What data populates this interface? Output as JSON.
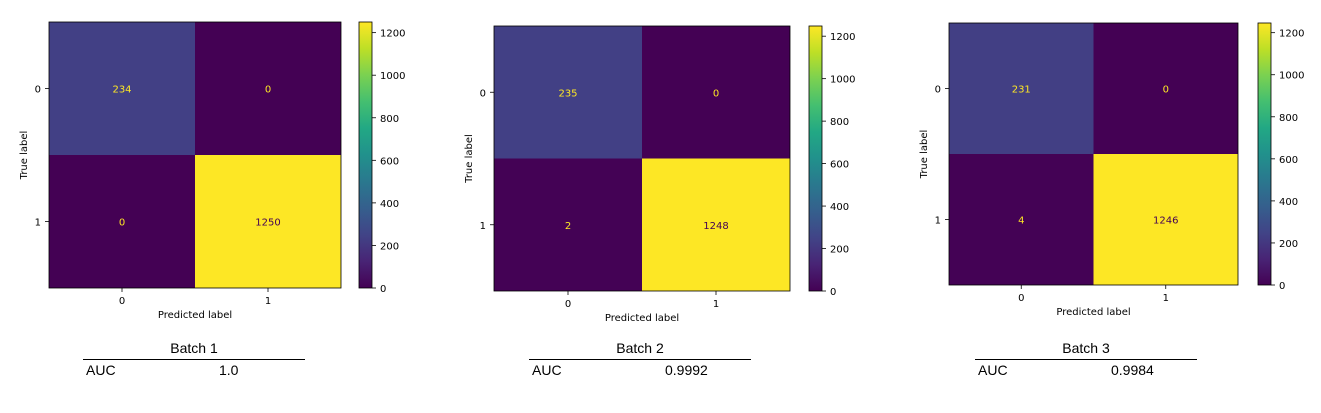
{
  "colormap": [
    "#440154",
    "#482475",
    "#414487",
    "#355f8d",
    "#2a788e",
    "#21918c",
    "#22a884",
    "#44bf70",
    "#7ad151",
    "#bddf26",
    "#fde725"
  ],
  "text_color_dark": "#440154",
  "text_color_light": "#fde725",
  "chart_data": [
    {
      "type": "heatmap",
      "xlabel": "Predicted label",
      "ylabel": "True label",
      "x_ticks": [
        "0",
        "1"
      ],
      "y_ticks": [
        "0",
        "1"
      ],
      "matrix": [
        [
          234,
          0
        ],
        [
          0,
          1250
        ]
      ],
      "colorbar": {
        "range": [
          0,
          1250
        ],
        "ticks": [
          0,
          200,
          400,
          600,
          800,
          1000,
          1200
        ]
      },
      "caption": {
        "title": "Batch 1",
        "metric": "AUC",
        "value": "1.0"
      }
    },
    {
      "type": "heatmap",
      "xlabel": "Predicted label",
      "ylabel": "True label",
      "x_ticks": [
        "0",
        "1"
      ],
      "y_ticks": [
        "0",
        "1"
      ],
      "matrix": [
        [
          235,
          0
        ],
        [
          2,
          1248
        ]
      ],
      "colorbar": {
        "range": [
          0,
          1248
        ],
        "ticks": [
          0,
          200,
          400,
          600,
          800,
          1000,
          1200
        ]
      },
      "caption": {
        "title": "Batch 2",
        "metric": "AUC",
        "value": "0.9992"
      }
    },
    {
      "type": "heatmap",
      "xlabel": "Predicted label",
      "ylabel": "True label",
      "x_ticks": [
        "0",
        "1"
      ],
      "y_ticks": [
        "0",
        "1"
      ],
      "matrix": [
        [
          231,
          0
        ],
        [
          4,
          1246
        ]
      ],
      "colorbar": {
        "range": [
          0,
          1246
        ],
        "ticks": [
          0,
          200,
          400,
          600,
          800,
          1000,
          1200
        ]
      },
      "caption": {
        "title": "Batch 3",
        "metric": "AUC",
        "value": "0.9984"
      }
    }
  ]
}
